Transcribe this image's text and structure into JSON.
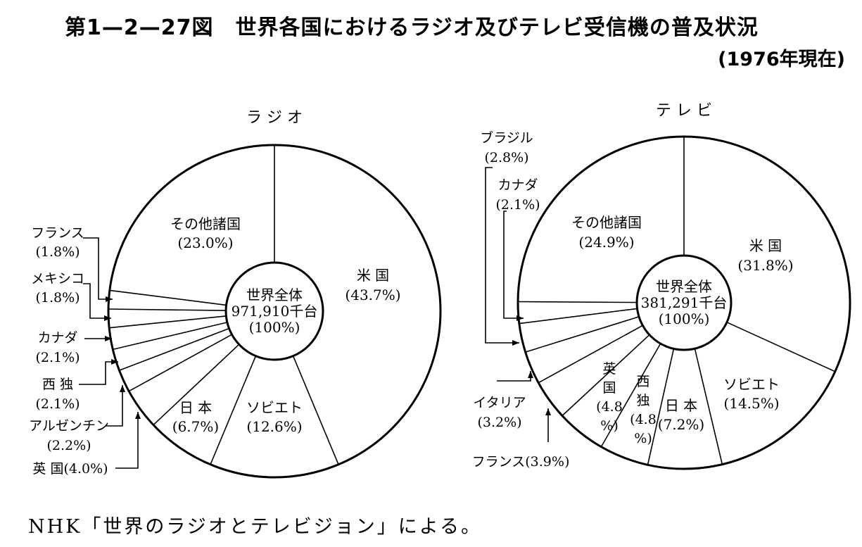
{
  "title": "第1—2—27図　世界各国におけるラジオ及びテレビ受信機の普及状況",
  "subtitle": "(1976年現在)",
  "source": "NHK「世界のラジオとテレビジョン」による。",
  "chart_data": [
    {
      "type": "pie",
      "title": "ラ ジ オ",
      "center_lines": [
        "世界全体",
        "971,910千台",
        "(100%)"
      ],
      "unit": "%",
      "slices": [
        {
          "name": "米 国",
          "value": 43.7
        },
        {
          "name": "ソビエト",
          "value": 12.6
        },
        {
          "name": "日 本",
          "value": 6.7
        },
        {
          "name": "英 国",
          "value": 4.0
        },
        {
          "name": "アルゼンチン",
          "value": 2.2
        },
        {
          "name": "西 独",
          "value": 2.1
        },
        {
          "name": "カナダ",
          "value": 2.1
        },
        {
          "name": "メキシコ",
          "value": 1.8
        },
        {
          "name": "フランス",
          "value": 1.8
        },
        {
          "name": "その他諸国",
          "value": 23.0
        }
      ],
      "labels": {
        "us": [
          "米 国",
          "(43.7%)"
        ],
        "soviet": [
          "ソビエト",
          "(12.6%)"
        ],
        "japan": [
          "日 本",
          "(6.7%)"
        ],
        "uk": [
          "英 国(4.0%)"
        ],
        "argentina": [
          "アルゼンチン",
          "(2.2%)"
        ],
        "wgermany": [
          "西 独",
          "(2.1%)"
        ],
        "canada": [
          "カナダ",
          "(2.1%)"
        ],
        "mexico": [
          "メキシコ",
          "(1.8%)"
        ],
        "france": [
          "フランス",
          "(1.8%)"
        ],
        "other": [
          "その他諸国",
          "(23.0%)"
        ]
      }
    },
    {
      "type": "pie",
      "title": "テ レ ビ",
      "center_lines": [
        "世界全体",
        "381,291千台",
        "(100%)"
      ],
      "unit": "%",
      "slices": [
        {
          "name": "米 国",
          "value": 31.8
        },
        {
          "name": "ソビエト",
          "value": 14.5
        },
        {
          "name": "日 本",
          "value": 7.2
        },
        {
          "name": "西 独",
          "value": 4.8
        },
        {
          "name": "英 国",
          "value": 4.8
        },
        {
          "name": "フランス",
          "value": 3.9
        },
        {
          "name": "イタリア",
          "value": 3.2
        },
        {
          "name": "ブラジル",
          "value": 2.8
        },
        {
          "name": "カナダ",
          "value": 2.1
        },
        {
          "name": "その他諸国",
          "value": 24.9
        }
      ],
      "labels": {
        "us": [
          "米 国",
          "(31.8%)"
        ],
        "soviet": [
          "ソビエト",
          "(14.5%)"
        ],
        "japan": [
          "日 本",
          "(7.2%)"
        ],
        "wgermany": [
          "西",
          "独",
          "(4.8",
          "%)"
        ],
        "uk": [
          "英",
          "国",
          "(4.8",
          "%)"
        ],
        "france": [
          "フランス(3.9%)"
        ],
        "italy": [
          "イタリア",
          "(3.2%)"
        ],
        "brazil": [
          "ブラジル",
          "(2.8%)"
        ],
        "canada": [
          "カナダ",
          "(2.1%)"
        ],
        "other": [
          "その他諸国",
          "(24.9%)"
        ]
      }
    }
  ]
}
